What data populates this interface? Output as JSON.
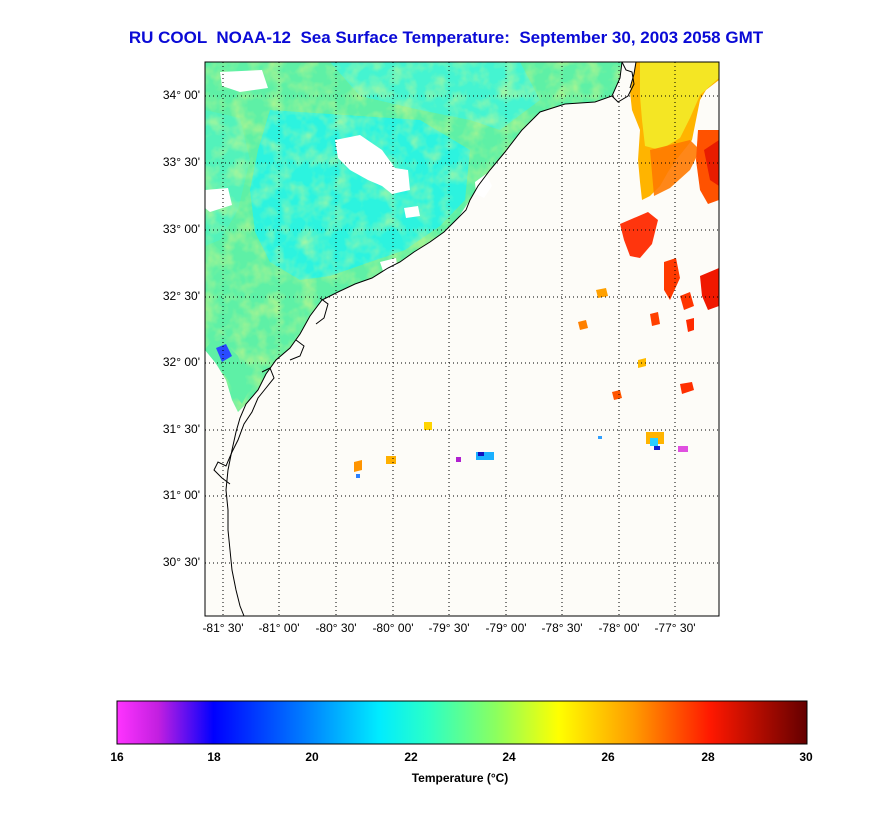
{
  "title": "RU COOL  NOAA-12  Sea Surface Temperature:  September 30, 2003 2058 GMT",
  "map": {
    "lat_labels": [
      "34° 00'",
      "33° 30'",
      "33° 00'",
      "32° 30'",
      "32° 00'",
      "31° 30'",
      "31° 00'",
      "30° 30'"
    ],
    "lon_labels": [
      "-81° 30'",
      "-81° 00'",
      "-80° 30'",
      "-80° 00'",
      "-79° 30'",
      "-79° 00'",
      "-78° 30'",
      "-78° 00'",
      "-77° 30'"
    ],
    "lat_range": [
      30.21,
      34.25
    ],
    "lon_range": [
      -81.65,
      -77.0
    ],
    "grid": true,
    "colors": {
      "land": "#fdfcf8",
      "coast": "#000000",
      "grid": "#000000"
    }
  },
  "colorbar": {
    "ticks": [
      "16",
      "18",
      "20",
      "22",
      "24",
      "26",
      "28",
      "30"
    ],
    "min": 16,
    "max": 30,
    "label": "Temperature (°C)",
    "colormap": "jet-with-magenta-low"
  }
}
